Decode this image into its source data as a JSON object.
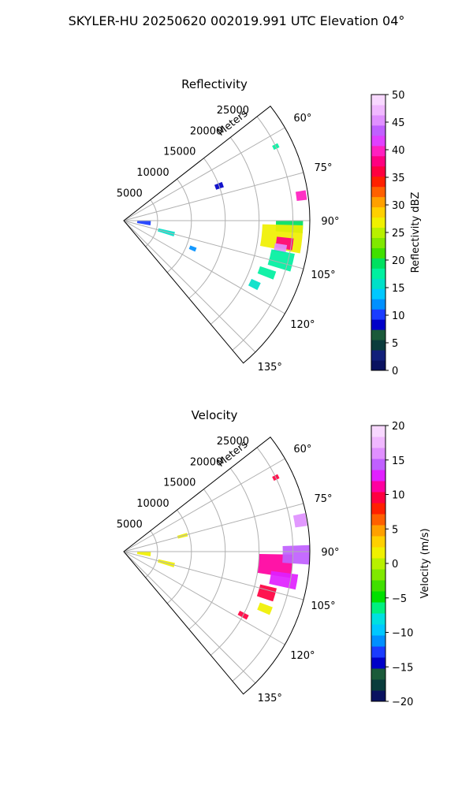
{
  "figure": {
    "suptitle": "SKYLER-HU  20250620  002019.991 UTC Elevation 04°"
  },
  "chart_data": [
    {
      "type": "polar-sector-heatmap",
      "title": "Reflectivity",
      "radial_label": "Meters",
      "range_ticks": [
        "5000",
        "10000",
        "15000",
        "20000",
        "25000"
      ],
      "range_tick_values": [
        5000,
        10000,
        15000,
        20000,
        25000
      ],
      "range_max": 27500,
      "azimuth_range_deg": [
        52,
        140
      ],
      "azimuth_ticks": [
        "60°",
        "75°",
        "90°",
        "105°",
        "120°",
        "135°"
      ],
      "azimuth_tick_values": [
        60,
        75,
        90,
        105,
        120,
        135
      ],
      "colorbar": {
        "label": "Reflectivity dBZ",
        "range": [
          0,
          50
        ],
        "ticks": [
          "0",
          "5",
          "10",
          "15",
          "20",
          "25",
          "30",
          "35",
          "40",
          "45",
          "50"
        ],
        "colors": [
          "#0a1260",
          "#12207a",
          "#0a3c3c",
          "#1b5a3a",
          "#0000c8",
          "#1a3cff",
          "#0090ff",
          "#00c8ff",
          "#00e0c8",
          "#00f0a0",
          "#00e060",
          "#40e000",
          "#80e800",
          "#b8f000",
          "#f0f000",
          "#ffd000",
          "#ffa000",
          "#ff6000",
          "#ff2000",
          "#ff0040",
          "#ff0080",
          "#ff20c0",
          "#e040ff",
          "#c060ff",
          "#e090ff",
          "#f0b8ff",
          "#f8d8ff"
        ]
      },
      "echoes": [
        {
          "az": 92,
          "r": 24500,
          "w": 4,
          "dr": 4000,
          "value": 20
        },
        {
          "az": 96,
          "r": 23500,
          "w": 9,
          "dr": 6000,
          "value": 26
        },
        {
          "az": 98,
          "r": 24000,
          "w": 4,
          "dr": 2500,
          "value": 38
        },
        {
          "az": 100,
          "r": 23500,
          "w": 3,
          "dr": 1800,
          "value": 45
        },
        {
          "az": 82,
          "r": 26500,
          "w": 3,
          "dr": 1500,
          "value": 40
        },
        {
          "az": 104,
          "r": 24000,
          "w": 6,
          "dr": 3500,
          "value": 18
        },
        {
          "az": 110,
          "r": 22500,
          "w": 3,
          "dr": 2500,
          "value": 18
        },
        {
          "az": 116,
          "r": 21500,
          "w": 3,
          "dr": 1500,
          "value": 16
        },
        {
          "az": 64,
          "r": 25000,
          "w": 1.5,
          "dr": 900,
          "value": 18
        },
        {
          "az": 70,
          "r": 15000,
          "w": 3,
          "dr": 1200,
          "value": 8
        },
        {
          "az": 95,
          "r": 3000,
          "w": 10,
          "dr": 2000,
          "value": 10
        },
        {
          "az": 105,
          "r": 6500,
          "w": 5,
          "dr": 2500,
          "value": 15
        },
        {
          "az": 112,
          "r": 11000,
          "w": 3,
          "dr": 1000,
          "value": 12
        }
      ]
    },
    {
      "type": "polar-sector-heatmap",
      "title": "Velocity",
      "radial_label": "Meters",
      "range_ticks": [
        "5000",
        "10000",
        "15000",
        "20000",
        "25000"
      ],
      "range_tick_values": [
        5000,
        10000,
        15000,
        20000,
        25000
      ],
      "range_max": 27500,
      "azimuth_range_deg": [
        52,
        140
      ],
      "azimuth_ticks": [
        "60°",
        "75°",
        "90°",
        "105°",
        "120°",
        "135°"
      ],
      "azimuth_tick_values": [
        60,
        75,
        90,
        105,
        120,
        135
      ],
      "colorbar": {
        "label": "Velocity (m/s)",
        "range": [
          -20,
          20
        ],
        "ticks": [
          "−20",
          "−15",
          "−10",
          "−5",
          "0",
          "5",
          "10",
          "15",
          "20"
        ],
        "colors": [
          "#0a1260",
          "#0a3c3c",
          "#1b5a3a",
          "#0000c8",
          "#1a3cff",
          "#0090ff",
          "#00c8ff",
          "#00e0e0",
          "#00f080",
          "#00e000",
          "#40e000",
          "#80e800",
          "#b8f000",
          "#f0f000",
          "#ffd000",
          "#ffa000",
          "#ff6000",
          "#ff2000",
          "#ff0040",
          "#ff00a0",
          "#e020ff",
          "#c060ff",
          "#e090ff",
          "#f0b8ff",
          "#f8d8ff"
        ]
      },
      "echoes": [
        {
          "az": 95,
          "r": 22500,
          "w": 8,
          "dr": 5000,
          "value": 11
        },
        {
          "az": 91,
          "r": 25500,
          "w": 6,
          "dr": 4000,
          "value": 15
        },
        {
          "az": 100,
          "r": 24000,
          "w": 5,
          "dr": 4000,
          "value": 13
        },
        {
          "az": 80,
          "r": 26500,
          "w": 4,
          "dr": 1800,
          "value": 16
        },
        {
          "az": 106,
          "r": 22000,
          "w": 5,
          "dr": 2500,
          "value": 10
        },
        {
          "az": 118,
          "r": 20000,
          "w": 2,
          "dr": 1500,
          "value": 10
        },
        {
          "az": 64,
          "r": 25000,
          "w": 1.5,
          "dr": 900,
          "value": 10
        },
        {
          "az": 112,
          "r": 22500,
          "w": 3,
          "dr": 2000,
          "value": 2
        },
        {
          "az": 95,
          "r": 3000,
          "w": 10,
          "dr": 2000,
          "value": 1
        },
        {
          "az": 105,
          "r": 6500,
          "w": 5,
          "dr": 2500,
          "value": 1
        },
        {
          "az": 75,
          "r": 9000,
          "w": 3,
          "dr": 1500,
          "value": 1
        }
      ]
    }
  ]
}
